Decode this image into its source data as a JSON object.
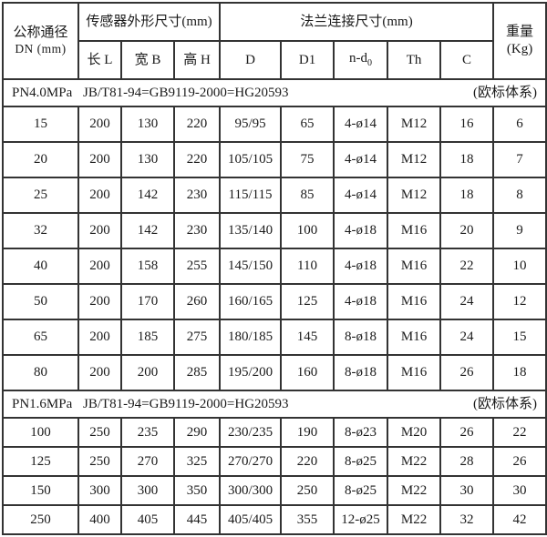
{
  "table": {
    "header": {
      "dn_line1": "公称通径",
      "dn_line2": "DN (mm)",
      "sensor_group": "传感器外形尺寸(mm)",
      "flange_group": "法兰连接尺寸(mm)",
      "weight_line1": "重量",
      "weight_line2": "(Kg)",
      "sub_columns": {
        "l": "长 L",
        "b": "宽 B",
        "h": "高 H",
        "d": "D",
        "d1": "D1",
        "nd0_base": "n-d",
        "nd0_sub": "0",
        "th": "Th",
        "c": "C"
      }
    },
    "sections": [
      {
        "pressure": "PN4.0MPa",
        "standard": "JB/T81-94=GB9119-2000=HG20593",
        "system": "(欧标体系)",
        "rows": [
          [
            "15",
            "200",
            "130",
            "220",
            "95/95",
            "65",
            "4-ø14",
            "M12",
            "16",
            "6"
          ],
          [
            "20",
            "200",
            "130",
            "220",
            "105/105",
            "75",
            "4-ø14",
            "M12",
            "18",
            "7"
          ],
          [
            "25",
            "200",
            "142",
            "230",
            "115/115",
            "85",
            "4-ø14",
            "M12",
            "18",
            "8"
          ],
          [
            "32",
            "200",
            "142",
            "230",
            "135/140",
            "100",
            "4-ø18",
            "M16",
            "20",
            "9"
          ],
          [
            "40",
            "200",
            "158",
            "255",
            "145/150",
            "110",
            "4-ø18",
            "M16",
            "22",
            "10"
          ],
          [
            "50",
            "200",
            "170",
            "260",
            "160/165",
            "125",
            "4-ø18",
            "M16",
            "24",
            "12"
          ],
          [
            "65",
            "200",
            "185",
            "275",
            "180/185",
            "145",
            "8-ø18",
            "M16",
            "24",
            "15"
          ],
          [
            "80",
            "200",
            "200",
            "285",
            "195/200",
            "160",
            "8-ø18",
            "M16",
            "26",
            "18"
          ]
        ]
      },
      {
        "pressure": "PN1.6MPa",
        "standard": "JB/T81-94=GB9119-2000=HG20593",
        "system": "(欧标体系)",
        "rows": [
          [
            "100",
            "250",
            "235",
            "290",
            "230/235",
            "190",
            "8-ø23",
            "M20",
            "26",
            "22"
          ],
          [
            "125",
            "250",
            "270",
            "325",
            "270/270",
            "220",
            "8-ø25",
            "M22",
            "28",
            "26"
          ],
          [
            "150",
            "300",
            "300",
            "350",
            "300/300",
            "250",
            "8-ø25",
            "M22",
            "30",
            "30"
          ],
          [
            "250",
            "400",
            "405",
            "445",
            "405/405",
            "355",
            "12-ø25",
            "M22",
            "32",
            "42"
          ]
        ]
      }
    ],
    "colors": {
      "border": "#333333",
      "text": "#1a1a1a",
      "background": "#ffffff"
    }
  }
}
